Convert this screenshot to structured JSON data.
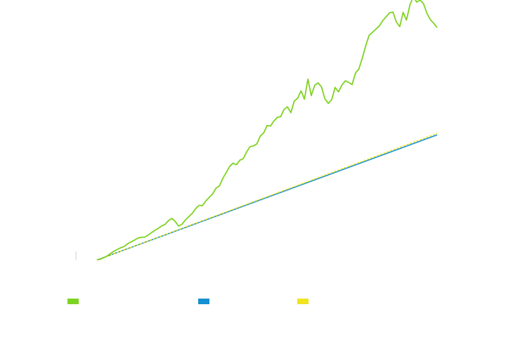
{
  "colors": {
    "series_green": "#7ed321",
    "series_blue": "#1590d0",
    "series_yellow": "#f0e41e",
    "axis": "#cccccc"
  },
  "chart_data": {
    "type": "line",
    "title": "",
    "xlabel": "",
    "ylabel": "",
    "grid": false,
    "legend_position": "bottom",
    "xlim": [
      0,
      100
    ],
    "ylim": [
      0,
      100
    ],
    "series": [
      {
        "name": "",
        "color_key": "series_green",
        "x": [
          0,
          1,
          2,
          3,
          4,
          5,
          6,
          7,
          8,
          9,
          10,
          11,
          12,
          13,
          14,
          15,
          16,
          17,
          18,
          19,
          20,
          21,
          22,
          23,
          24,
          25,
          26,
          27,
          28,
          29,
          30,
          31,
          32,
          33,
          34,
          35,
          36,
          37,
          38,
          39,
          40,
          41,
          42,
          43,
          44,
          45,
          46,
          47,
          48,
          49,
          50,
          51,
          52,
          53,
          54,
          55,
          56,
          57,
          58,
          59,
          60,
          61,
          62,
          63,
          64,
          65,
          66,
          67,
          68,
          69,
          70,
          71,
          72,
          73,
          74,
          75,
          76,
          77,
          78,
          79,
          80,
          81,
          82,
          83,
          84,
          85,
          86,
          87,
          88,
          89,
          90,
          91,
          92,
          93,
          94,
          95,
          96,
          97,
          98,
          99,
          100
        ],
        "y": [
          0.0,
          0.3,
          0.9,
          1.6,
          2.6,
          3.5,
          4.2,
          4.9,
          5.4,
          6.5,
          7.2,
          7.9,
          8.7,
          9.1,
          9.1,
          9.9,
          10.9,
          11.8,
          12.6,
          13.6,
          14.2,
          15.7,
          16.6,
          15.4,
          13.5,
          14.3,
          16.0,
          17.3,
          18.6,
          20.5,
          21.8,
          21.7,
          23.6,
          25.0,
          26.4,
          28.7,
          29.6,
          32.6,
          35.0,
          37.4,
          38.7,
          38.1,
          39.9,
          40.5,
          43.2,
          45.3,
          45.6,
          46.4,
          49.5,
          50.8,
          53.7,
          53.5,
          55.5,
          57.0,
          57.3,
          60.2,
          61.2,
          58.9,
          63.5,
          64.7,
          67.6,
          64.3,
          72.3,
          65.7,
          69.8,
          70.8,
          69.2,
          64.4,
          62.6,
          64.1,
          69.0,
          67.2,
          69.9,
          71.6,
          71.0,
          70.1,
          74.7,
          76.4,
          80.7,
          85.6,
          89.8,
          91.0,
          92.3,
          93.5,
          95.7,
          97.2,
          98.8,
          99.1,
          95.2,
          93.3,
          99.0,
          95.9,
          102.0,
          105.2,
          103.1,
          103.9,
          102.5,
          98.6,
          96.1,
          94.6,
          92.9
        ]
      },
      {
        "name": "",
        "color_key": "series_blue",
        "x": [
          0,
          100
        ],
        "y": [
          0,
          50
        ]
      },
      {
        "name": "",
        "color_key": "series_yellow",
        "dashed": true,
        "x": [
          0,
          100
        ],
        "y": [
          0,
          50.6
        ]
      }
    ]
  }
}
